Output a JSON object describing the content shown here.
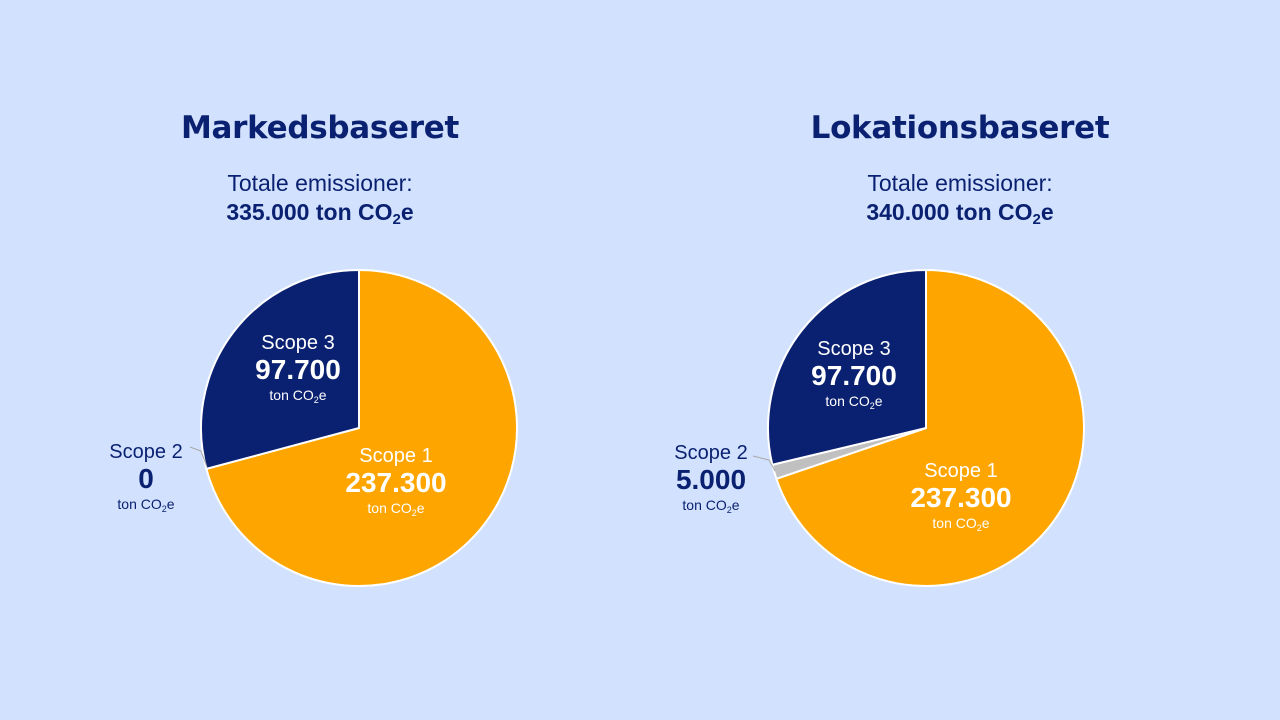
{
  "co2_prefix": "CO",
  "co2_sub": "2",
  "co2_suffix": "e",
  "colors": {
    "background": "#d2e2fe",
    "text": "#0a2171",
    "scope1": "#ffa500",
    "scope2": "#c0c0c0",
    "scope3": "#0a2171",
    "border": "#ffffff"
  },
  "chart_data": [
    {
      "type": "pie",
      "title": "Markedsbaseret",
      "total_label": "Totale emissioner:",
      "total_value": "335.000",
      "total_unit": "ton",
      "slices": [
        {
          "name": "Scope 1",
          "value": 237300,
          "display": "237.300",
          "unit": "ton",
          "color": "#ffa500",
          "label_style": "inside"
        },
        {
          "name": "Scope 2",
          "value": 0,
          "display": "0",
          "unit": "ton",
          "color": "#c0c0c0",
          "label_style": "outside"
        },
        {
          "name": "Scope 3",
          "value": 97700,
          "display": "97.700",
          "unit": "ton",
          "color": "#0a2171",
          "label_style": "inside"
        }
      ]
    },
    {
      "type": "pie",
      "title": "Lokationsbaseret",
      "total_label": "Totale emissioner:",
      "total_value": "340.000",
      "total_unit": "ton",
      "slices": [
        {
          "name": "Scope 1",
          "value": 237300,
          "display": "237.300",
          "unit": "ton",
          "color": "#ffa500",
          "label_style": "inside"
        },
        {
          "name": "Scope 2",
          "value": 5000,
          "display": "5.000",
          "unit": "ton",
          "color": "#c0c0c0",
          "label_style": "outside"
        },
        {
          "name": "Scope 3",
          "value": 97700,
          "display": "97.700",
          "unit": "ton",
          "color": "#0a2171",
          "label_style": "inside"
        }
      ]
    }
  ]
}
